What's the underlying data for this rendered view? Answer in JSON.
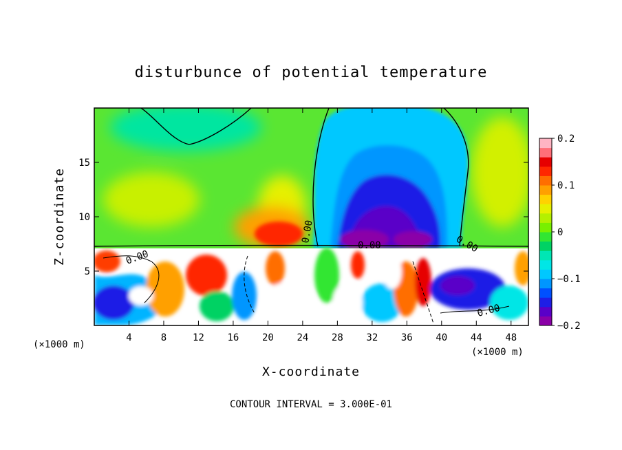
{
  "chart_data": {
    "type": "heatmap",
    "title": "disturbunce of potential temperature",
    "xlabel": "X-coordinate",
    "ylabel": "Z-coordinate",
    "x_unit_left": "(×1000 m)",
    "x_unit_right": "(×1000 m)",
    "xlim": [
      0,
      50
    ],
    "ylim": [
      0,
      20
    ],
    "x_ticks": [
      4,
      8,
      12,
      16,
      20,
      24,
      28,
      32,
      36,
      40,
      44,
      48
    ],
    "y_ticks": [
      5,
      10,
      15
    ],
    "colorbar": {
      "min": -0.2,
      "max": 0.2,
      "tick_values": [
        0.2,
        0.1,
        0,
        -0.1,
        -0.2
      ],
      "tick_labels": [
        "0.2",
        "0.1",
        "0",
        "−0.1",
        "−0.2"
      ],
      "colors": [
        "#8B00A8",
        "#5A00C8",
        "#1E1EE6",
        "#0050FF",
        "#0096FF",
        "#00C8FF",
        "#00E6E6",
        "#00E6B4",
        "#00D264",
        "#32E632",
        "#78F000",
        "#B4F000",
        "#E6F000",
        "#FFD200",
        "#FFA000",
        "#FF6E00",
        "#FF2800",
        "#E60000",
        "#FF6E78",
        "#FFB4C3"
      ]
    },
    "contour_label": "0.00",
    "contour_interval_text": "CONTOUR INTERVAL = 3.000E-01",
    "features": {
      "upper_warm_anomaly": {
        "x_center": 21,
        "z_top": 10.5,
        "max": 0.15
      },
      "upper_cold_plume": {
        "x_range": [
          25,
          41
        ],
        "z_top": 20,
        "min": -0.2
      },
      "interface_height": 7.2,
      "lower_layer": "turbulent mixed layer with strong positive and negative anomalies"
    }
  }
}
